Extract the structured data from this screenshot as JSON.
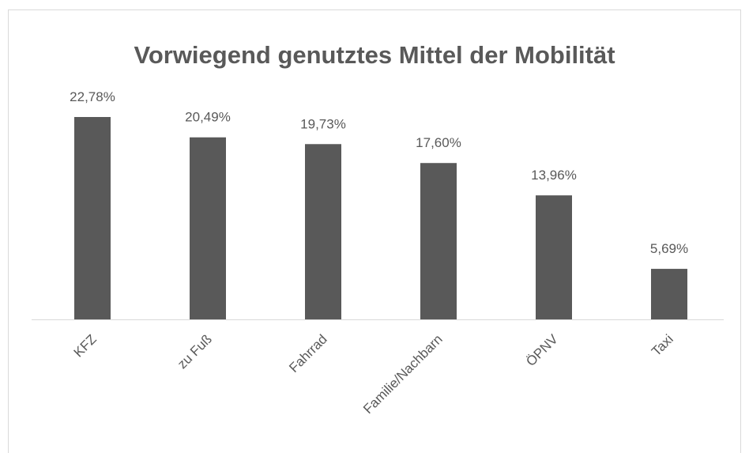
{
  "chart_data": {
    "type": "bar",
    "title": "Vorwiegend genutztes Mittel der Mobilität",
    "categories": [
      "KFZ",
      "zu Fuß",
      "Fahrrad",
      "Familie/Nachbarn",
      "ÖPNV",
      "Taxi"
    ],
    "values": [
      22.78,
      20.49,
      19.73,
      17.6,
      13.96,
      5.69
    ],
    "value_labels": [
      "22,78%",
      "20,49%",
      "19,73%",
      "17,60%",
      "13,96%",
      "5,69%"
    ],
    "color": "#595959"
  }
}
